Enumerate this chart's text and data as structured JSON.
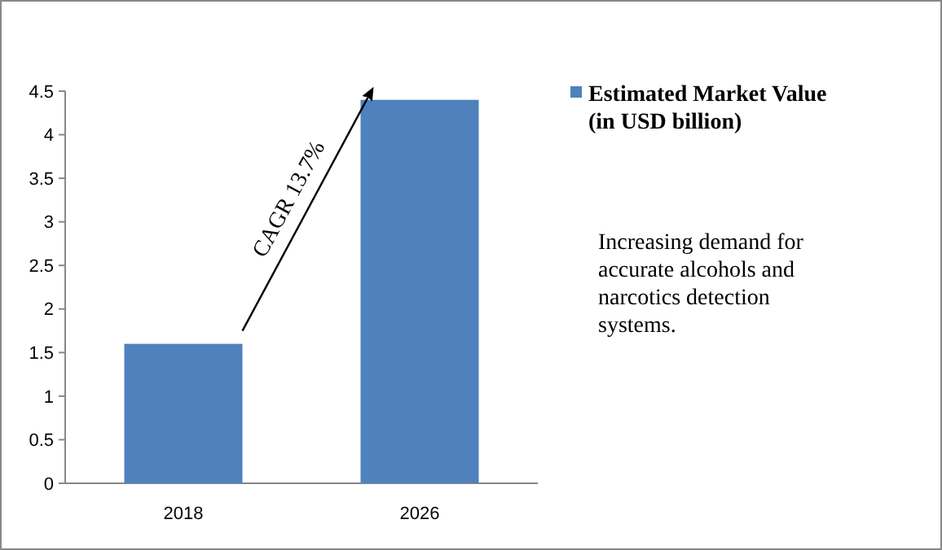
{
  "chart_data": {
    "type": "bar",
    "categories": [
      "2018",
      "2026"
    ],
    "series": [
      {
        "name": "Estimated Market Value (in USD billion)",
        "color": "#4f81bd",
        "values": [
          1.6,
          4.4
        ]
      }
    ],
    "ylim": [
      0,
      4.5
    ],
    "yticks": [
      0,
      0.5,
      1,
      1.5,
      2,
      2.5,
      3,
      3.5,
      4,
      4.5
    ],
    "grid": false,
    "legend": "top right",
    "annotations": [
      "CAGR 13.7%",
      "Increasing demand for accurate alcohols and narcotics detection systems."
    ]
  }
}
